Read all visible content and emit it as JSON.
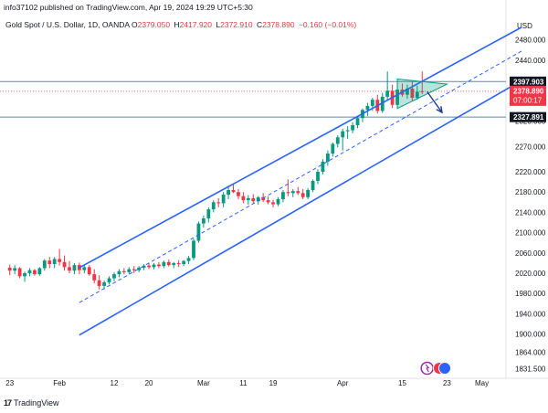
{
  "header": {
    "publisher": "info37102 published on TradingView.com, Apr 19, 2024 19:29 UTC+5:30",
    "symbol": "Gold Spot / U.S. Dollar, 1D, OANDA",
    "open_label": "O",
    "open": "2379.050",
    "high_label": "H",
    "high": "2417.920",
    "low_label": "L",
    "low": "2372.910",
    "close_label": "C",
    "close": "2378.890",
    "change": "−0.160 (−0.01%)",
    "currency": "USD"
  },
  "footer": {
    "logo": "17",
    "brand": "TradingView"
  },
  "chart_data": {
    "type": "candlestick",
    "y_axis": {
      "ticks": [
        2480,
        2440,
        2400,
        2360,
        2320,
        2270,
        2220,
        2180,
        2140,
        2100,
        2060,
        2020,
        1980,
        1940,
        1900,
        1864,
        1831.5
      ],
      "tick_labels": [
        "2480.000",
        "2440.000",
        "2400.000",
        "2360.000",
        "2320.000",
        "2270.000",
        "2220.000",
        "2180.000",
        "2140.000",
        "2100.000",
        "2060.000",
        "2020.000",
        "1980.000",
        "1940.000",
        "1900.000",
        "1864.000",
        "1831.500"
      ],
      "range": [
        1820,
        2530
      ]
    },
    "x_axis": {
      "labels": [
        "23",
        "Feb",
        "12",
        "20",
        "Mar",
        "11",
        "19",
        "Apr",
        "15",
        "23",
        "May"
      ],
      "label_bar_index": [
        0,
        10,
        21,
        28,
        39,
        47,
        53,
        67,
        79,
        88,
        95
      ]
    },
    "bar_count": 100,
    "price_labels": [
      {
        "value": 2397.903,
        "text": "2397.903",
        "color": "#131722"
      },
      {
        "value": 2378.89,
        "text": "2378.890",
        "color": "#f23645",
        "sub": "07:00:17"
      },
      {
        "value": 2327.891,
        "text": "2327.891",
        "color": "#131722"
      }
    ],
    "horizontal_lines": [
      2397.903,
      2327.891
    ],
    "channel": {
      "upper": {
        "x1": 14,
        "y1": 2031,
        "x2": 103,
        "y2": 2505
      },
      "lower": {
        "x1": 14,
        "y1": 1898,
        "x2": 103,
        "y2": 2400
      },
      "mid": {
        "x1": 14,
        "y1": 1962,
        "x2": 103,
        "y2": 2458
      }
    },
    "triangle": [
      [
        78,
        2403
      ],
      [
        88,
        2393
      ],
      [
        78,
        2345
      ]
    ],
    "arrow": {
      "x1": 84,
      "y1": 2378,
      "x2": 87,
      "y2": 2337
    },
    "candles": [
      {
        "o": 2031,
        "h": 2037,
        "l": 2016,
        "c": 2025
      },
      {
        "o": 2025,
        "h": 2036,
        "l": 2018,
        "c": 2030
      },
      {
        "o": 2030,
        "h": 2032,
        "l": 2010,
        "c": 2014
      },
      {
        "o": 2014,
        "h": 2023,
        "l": 2003,
        "c": 2020
      },
      {
        "o": 2020,
        "h": 2030,
        "l": 2014,
        "c": 2026
      },
      {
        "o": 2026,
        "h": 2028,
        "l": 2015,
        "c": 2018
      },
      {
        "o": 2018,
        "h": 2032,
        "l": 2015,
        "c": 2030
      },
      {
        "o": 2030,
        "h": 2048,
        "l": 2025,
        "c": 2045
      },
      {
        "o": 2045,
        "h": 2052,
        "l": 2030,
        "c": 2038
      },
      {
        "o": 2038,
        "h": 2052,
        "l": 2030,
        "c": 2048
      },
      {
        "o": 2048,
        "h": 2068,
        "l": 2035,
        "c": 2042
      },
      {
        "o": 2042,
        "h": 2055,
        "l": 2025,
        "c": 2032
      },
      {
        "o": 2032,
        "h": 2044,
        "l": 2020,
        "c": 2025
      },
      {
        "o": 2025,
        "h": 2040,
        "l": 2018,
        "c": 2036
      },
      {
        "o": 2036,
        "h": 2041,
        "l": 2018,
        "c": 2026
      },
      {
        "o": 2026,
        "h": 2036,
        "l": 2020,
        "c": 2032
      },
      {
        "o": 2032,
        "h": 2036,
        "l": 2015,
        "c": 2018
      },
      {
        "o": 2018,
        "h": 2028,
        "l": 2000,
        "c": 2006
      },
      {
        "o": 2006,
        "h": 2016,
        "l": 1988,
        "c": 1995
      },
      {
        "o": 1995,
        "h": 2006,
        "l": 1988,
        "c": 2002
      },
      {
        "o": 2002,
        "h": 2014,
        "l": 1998,
        "c": 2010
      },
      {
        "o": 2010,
        "h": 2022,
        "l": 2004,
        "c": 2018
      },
      {
        "o": 2018,
        "h": 2028,
        "l": 2012,
        "c": 2024
      },
      {
        "o": 2024,
        "h": 2030,
        "l": 2018,
        "c": 2022
      },
      {
        "o": 2022,
        "h": 2032,
        "l": 2018,
        "c": 2028
      },
      {
        "o": 2028,
        "h": 2034,
        "l": 2020,
        "c": 2026
      },
      {
        "o": 2026,
        "h": 2034,
        "l": 2022,
        "c": 2031
      },
      {
        "o": 2031,
        "h": 2038,
        "l": 2026,
        "c": 2035
      },
      {
        "o": 2035,
        "h": 2040,
        "l": 2028,
        "c": 2032
      },
      {
        "o": 2032,
        "h": 2040,
        "l": 2028,
        "c": 2037
      },
      {
        "o": 2037,
        "h": 2042,
        "l": 2030,
        "c": 2034
      },
      {
        "o": 2034,
        "h": 2045,
        "l": 2030,
        "c": 2042
      },
      {
        "o": 2042,
        "h": 2047,
        "l": 2033,
        "c": 2036
      },
      {
        "o": 2036,
        "h": 2042,
        "l": 2030,
        "c": 2040
      },
      {
        "o": 2040,
        "h": 2046,
        "l": 2032,
        "c": 2038
      },
      {
        "o": 2038,
        "h": 2046,
        "l": 2034,
        "c": 2044
      },
      {
        "o": 2044,
        "h": 2054,
        "l": 2038,
        "c": 2050
      },
      {
        "o": 2050,
        "h": 2088,
        "l": 2046,
        "c": 2084
      },
      {
        "o": 2084,
        "h": 2122,
        "l": 2080,
        "c": 2118
      },
      {
        "o": 2118,
        "h": 2134,
        "l": 2110,
        "c": 2128
      },
      {
        "o": 2128,
        "h": 2150,
        "l": 2120,
        "c": 2146
      },
      {
        "o": 2146,
        "h": 2164,
        "l": 2140,
        "c": 2160
      },
      {
        "o": 2160,
        "h": 2168,
        "l": 2150,
        "c": 2158
      },
      {
        "o": 2158,
        "h": 2180,
        "l": 2150,
        "c": 2175
      },
      {
        "o": 2175,
        "h": 2190,
        "l": 2166,
        "c": 2184
      },
      {
        "o": 2184,
        "h": 2195,
        "l": 2178,
        "c": 2180
      },
      {
        "o": 2180,
        "h": 2186,
        "l": 2166,
        "c": 2172
      },
      {
        "o": 2172,
        "h": 2180,
        "l": 2158,
        "c": 2164
      },
      {
        "o": 2164,
        "h": 2174,
        "l": 2155,
        "c": 2168
      },
      {
        "o": 2168,
        "h": 2176,
        "l": 2158,
        "c": 2162
      },
      {
        "o": 2162,
        "h": 2172,
        "l": 2155,
        "c": 2170
      },
      {
        "o": 2170,
        "h": 2178,
        "l": 2160,
        "c": 2164
      },
      {
        "o": 2164,
        "h": 2172,
        "l": 2156,
        "c": 2160
      },
      {
        "o": 2160,
        "h": 2165,
        "l": 2150,
        "c": 2156
      },
      {
        "o": 2156,
        "h": 2170,
        "l": 2152,
        "c": 2166
      },
      {
        "o": 2166,
        "h": 2184,
        "l": 2160,
        "c": 2180
      },
      {
        "o": 2180,
        "h": 2205,
        "l": 2172,
        "c": 2178
      },
      {
        "o": 2178,
        "h": 2186,
        "l": 2170,
        "c": 2182
      },
      {
        "o": 2182,
        "h": 2190,
        "l": 2174,
        "c": 2178
      },
      {
        "o": 2178,
        "h": 2186,
        "l": 2166,
        "c": 2170
      },
      {
        "o": 2170,
        "h": 2188,
        "l": 2166,
        "c": 2184
      },
      {
        "o": 2184,
        "h": 2205,
        "l": 2180,
        "c": 2202
      },
      {
        "o": 2202,
        "h": 2225,
        "l": 2196,
        "c": 2220
      },
      {
        "o": 2220,
        "h": 2245,
        "l": 2215,
        "c": 2240
      },
      {
        "o": 2240,
        "h": 2262,
        "l": 2232,
        "c": 2256
      },
      {
        "o": 2256,
        "h": 2278,
        "l": 2250,
        "c": 2275
      },
      {
        "o": 2275,
        "h": 2292,
        "l": 2268,
        "c": 2288
      },
      {
        "o": 2288,
        "h": 2305,
        "l": 2262,
        "c": 2300
      },
      {
        "o": 2300,
        "h": 2310,
        "l": 2285,
        "c": 2302
      },
      {
        "o": 2302,
        "h": 2318,
        "l": 2296,
        "c": 2312
      },
      {
        "o": 2312,
        "h": 2330,
        "l": 2306,
        "c": 2326
      },
      {
        "o": 2326,
        "h": 2345,
        "l": 2318,
        "c": 2342
      },
      {
        "o": 2342,
        "h": 2356,
        "l": 2330,
        "c": 2350
      },
      {
        "o": 2350,
        "h": 2366,
        "l": 2340,
        "c": 2362
      },
      {
        "o": 2362,
        "h": 2372,
        "l": 2335,
        "c": 2340
      },
      {
        "o": 2340,
        "h": 2376,
        "l": 2336,
        "c": 2368
      },
      {
        "o": 2368,
        "h": 2418,
        "l": 2360,
        "c": 2380
      },
      {
        "o": 2380,
        "h": 2392,
        "l": 2346,
        "c": 2352
      },
      {
        "o": 2352,
        "h": 2388,
        "l": 2348,
        "c": 2382
      },
      {
        "o": 2382,
        "h": 2394,
        "l": 2368,
        "c": 2372
      },
      {
        "o": 2372,
        "h": 2392,
        "l": 2364,
        "c": 2384
      },
      {
        "o": 2384,
        "h": 2398,
        "l": 2360,
        "c": 2366
      },
      {
        "o": 2366,
        "h": 2390,
        "l": 2362,
        "c": 2378
      },
      {
        "o": 2379.05,
        "h": 2417.92,
        "l": 2372.91,
        "c": 2378.89
      }
    ],
    "badges": [
      {
        "bar": 84,
        "type": "event",
        "color": "#9c27b0"
      },
      {
        "bar": 87,
        "type": "currency",
        "color": "#f23645"
      }
    ]
  }
}
